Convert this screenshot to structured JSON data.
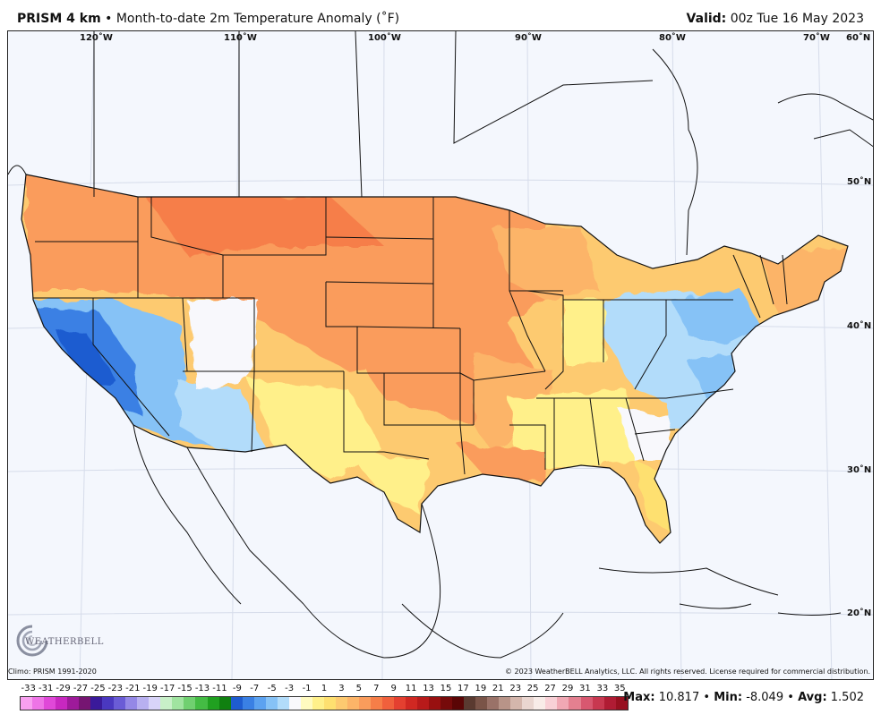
{
  "header": {
    "product": "PRISM 4 km",
    "separator": "•",
    "title": "Month-to-date 2m Temperature Anomaly (˚F)",
    "valid_label": "Valid:",
    "valid_time": "00z Tue 16 May 2023"
  },
  "map": {
    "longitude_labels": [
      "120˚W",
      "110˚W",
      "100˚W",
      "90˚W",
      "80˚W",
      "70˚W",
      "60˚N"
    ],
    "latitude_labels": [
      "50˚N",
      "40˚N",
      "30˚N",
      "20˚N"
    ]
  },
  "logo": {
    "text": "WEATHERBELL"
  },
  "footer": {
    "climo": "Climo: PRISM 1991-2020",
    "copyright": "© 2023 WeatherBELL Analytics, LLC. All rights reserved. License required for commercial distribution."
  },
  "legend": {
    "labels": [
      "-33",
      "-31",
      "-29",
      "-27",
      "-25",
      "-23",
      "-21",
      "-19",
      "-17",
      "-15",
      "-13",
      "-11",
      "-9",
      "-7",
      "-5",
      "-3",
      "-1",
      "1",
      "3",
      "5",
      "7",
      "9",
      "11",
      "13",
      "15",
      "17",
      "19",
      "21",
      "23",
      "25",
      "27",
      "29",
      "31",
      "33",
      "35"
    ],
    "colors": [
      "#f8a0f0",
      "#ee74e6",
      "#e048d8",
      "#c828c0",
      "#9e1a9a",
      "#761572",
      "#3a1a9a",
      "#4a38c0",
      "#6a5cd6",
      "#9488e6",
      "#b8b0f0",
      "#d8d4f8",
      "#c8f0c8",
      "#a0e4a0",
      "#70d070",
      "#44bc44",
      "#20a020",
      "#108010",
      "#1e5cd0",
      "#3a80e4",
      "#5ca2f0",
      "#86c2f6",
      "#b2dcfa",
      "#f8f8fc",
      "#fffac0",
      "#fff08a",
      "#fee070",
      "#fdca70",
      "#fcb468",
      "#fa9c5c",
      "#f67e48",
      "#f0603c",
      "#e44030",
      "#d02822",
      "#b81a1a",
      "#981010",
      "#760a0a",
      "#5a0505",
      "#5a3a30",
      "#7a5448",
      "#9a7268",
      "#b89488",
      "#d4b6ac",
      "#ead6d0",
      "#f8ece8",
      "#f8d0d6",
      "#f0a8b4",
      "#e48090",
      "#d85870",
      "#c83850",
      "#b01c34",
      "#981020"
    ]
  },
  "stats": {
    "max_label": "Max:",
    "max": "10.817",
    "min_label": "Min:",
    "min": "-8.049",
    "avg_label": "Avg:",
    "avg": "1.502",
    "sep": "•"
  }
}
